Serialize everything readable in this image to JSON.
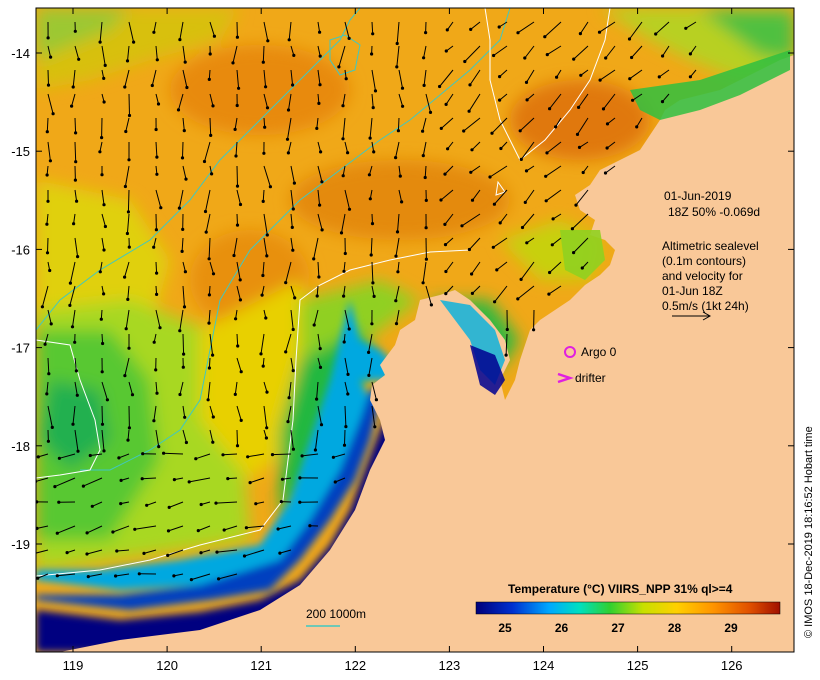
{
  "map": {
    "date_label": "01-Jun-2019",
    "time_label": "18Z  50% -0.069d",
    "altimetry_lines": [
      "Altimetric sealevel",
      "(0.1m contours)",
      "and velocity for",
      "01-Jun 18Z",
      "0.5m/s (1kt 24h)"
    ],
    "argo_label": "Argo 0",
    "drifter_label": "drifter",
    "depth_label": "200  1000m",
    "copyright": "© IMOS 18-Dec-2019 18:16:52 Hobart time",
    "x_ticks": [
      "119",
      "120",
      "121",
      "122",
      "123",
      "124",
      "125",
      "126"
    ],
    "y_ticks": [
      "-14",
      "-15",
      "-16",
      "-17",
      "-18",
      "-19"
    ]
  },
  "legend": {
    "title": "Temperature (°C) VIIRS_NPP 31% ql>=4",
    "ticks": [
      "25",
      "26",
      "27",
      "28",
      "29"
    ],
    "colors": [
      "#00007a",
      "#0033cc",
      "#00a0ff",
      "#00e0c0",
      "#30d030",
      "#c8e000",
      "#ffd000",
      "#ff9000",
      "#e05000",
      "#a01000"
    ]
  },
  "colors": {
    "land": "#f9c898",
    "contour": "#ffffff",
    "isobath": "#40c8c0",
    "argo": "#e020e0",
    "arrow": "#000000"
  }
}
